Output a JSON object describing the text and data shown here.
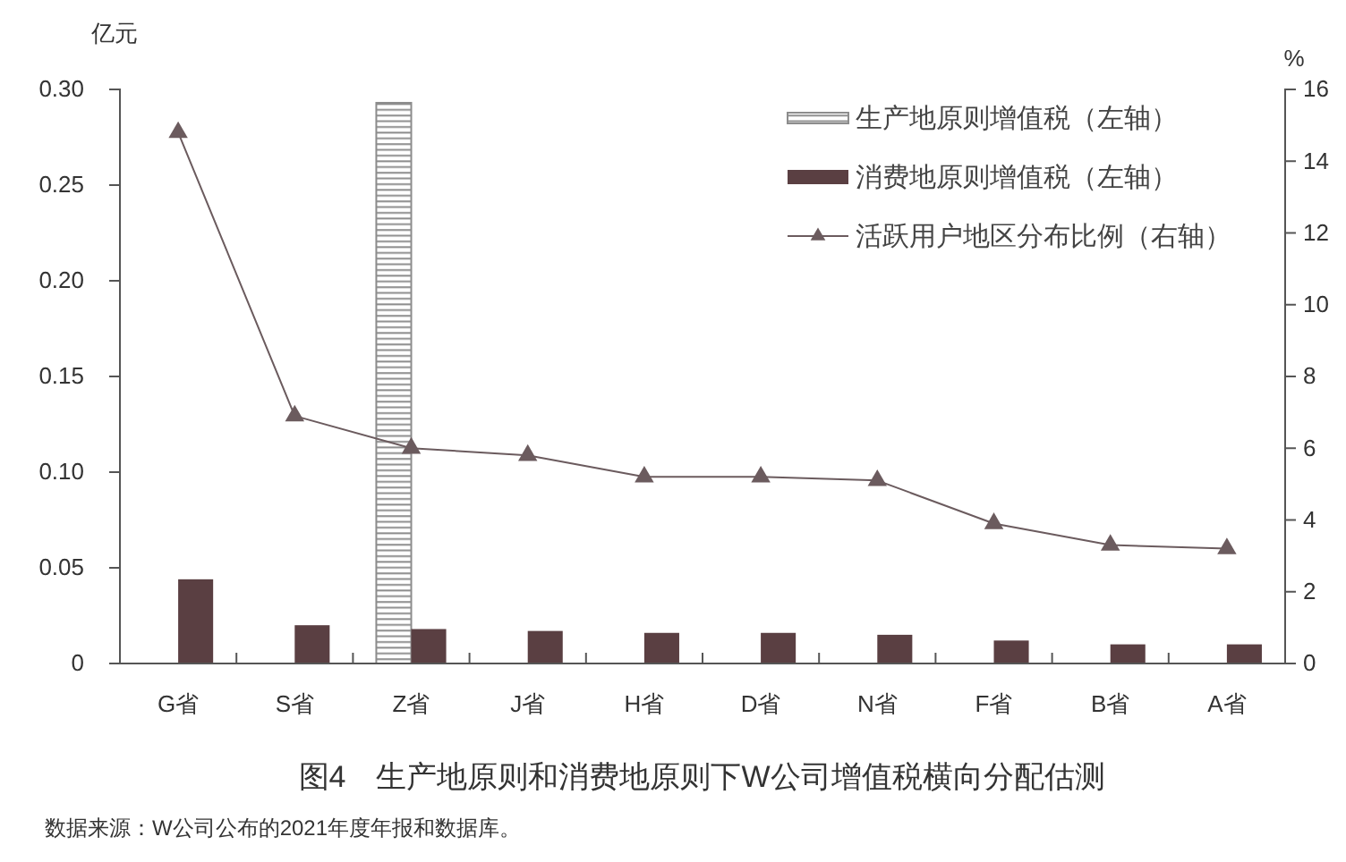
{
  "chart_data": {
    "type": "bar",
    "title": "图4　生产地原则和消费地原则下W公司增值税横向分配估测",
    "ylabel": "亿元",
    "y2label": "%",
    "annotations": [
      "数据来源：W公司公布的2021年度年报和数据库。"
    ],
    "categories": [
      "G省",
      "S省",
      "Z省",
      "J省",
      "H省",
      "D省",
      "N省",
      "F省",
      "B省",
      "A省"
    ],
    "series": [
      {
        "name": "生产地原则增值税（左轴）",
        "color": "#8c8c8c",
        "values": [
          0,
          0,
          0.293,
          0,
          0,
          0,
          0,
          0,
          0,
          0
        ]
      },
      {
        "name": "消费地原则增值税（左轴）",
        "color": "#5a3f42",
        "values": [
          0.044,
          0.02,
          0.018,
          0.017,
          0.016,
          0.016,
          0.015,
          0.012,
          0.01,
          0.01
        ]
      },
      {
        "name": "活跃用户地区分布比例（右轴）",
        "type": "line",
        "axis": "y2",
        "color": "#6b5b5e",
        "values": [
          14.8,
          6.9,
          6.0,
          5.8,
          5.2,
          5.2,
          5.1,
          3.9,
          3.3,
          3.2
        ]
      }
    ],
    "ylim": [
      0,
      0.3
    ],
    "yticks": [
      0,
      {
        "value": 0.05,
        "label": "0.05"
      },
      {
        "value": 0.1,
        "label": "0.10"
      },
      {
        "value": 0.15,
        "label": "0.15"
      },
      {
        "value": 0.2,
        "label": "0.20"
      },
      {
        "value": 0.25,
        "label": "0.25"
      },
      {
        "value": 0.3,
        "label": "0.30"
      }
    ],
    "y2lim": [
      0,
      16
    ],
    "y2ticks": [
      0,
      2,
      4,
      6,
      8,
      10,
      12,
      14,
      16
    ],
    "legend": "top right",
    "marker": "triangle",
    "line_style": "solid",
    "grid": false
  }
}
